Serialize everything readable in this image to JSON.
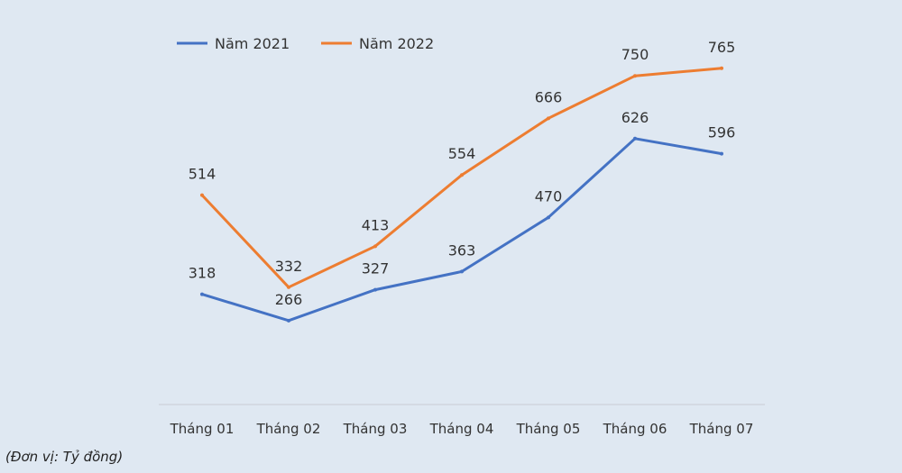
{
  "chart_data": {
    "type": "line",
    "categories": [
      "Tháng 01",
      "Tháng 02",
      "Tháng 03",
      "Tháng 04",
      "Tháng 05",
      "Tháng 06",
      "Tháng 07"
    ],
    "series": [
      {
        "name": "Năm 2021",
        "values": [
          318,
          266,
          327,
          363,
          470,
          626,
          596
        ],
        "color": "#4472c4"
      },
      {
        "name": "Năm 2022",
        "values": [
          514,
          332,
          413,
          554,
          666,
          750,
          765
        ],
        "color": "#ed7d31"
      }
    ],
    "ylim": [
      100,
      900
    ],
    "grid": false,
    "legend": "top-left",
    "unit_note": "(Đơn vị: Tỷ đồng)"
  }
}
